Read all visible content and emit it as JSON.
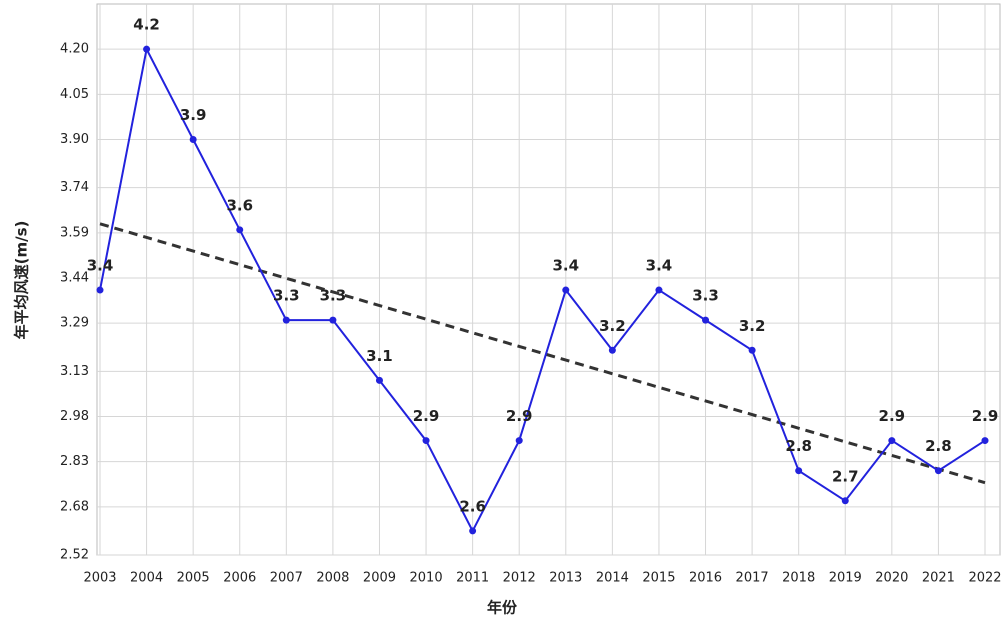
{
  "chart_data": {
    "type": "line",
    "x_label": "年份",
    "y_label": "年平均风速(m/s)",
    "categories": [
      "2003",
      "2004",
      "2005",
      "2006",
      "2007",
      "2008",
      "2009",
      "2010",
      "2011",
      "2012",
      "2013",
      "2014",
      "2015",
      "2016",
      "2017",
      "2018",
      "2019",
      "2020",
      "2021",
      "2022"
    ],
    "series": [
      {
        "color": "#2222dd",
        "values": [
          3.4,
          4.2,
          3.9,
          3.6,
          3.3,
          3.3,
          3.1,
          2.9,
          2.6,
          2.9,
          3.4,
          3.2,
          3.4,
          3.3,
          3.2,
          2.8,
          2.7,
          2.9,
          2.8,
          2.9
        ]
      }
    ],
    "trendline": {
      "values": [
        3.62,
        2.76
      ],
      "color": "#333333",
      "style": "dashed"
    },
    "ylim": [
      2.52,
      4.35
    ],
    "yticks": [
      2.52,
      2.68,
      2.83,
      2.98,
      3.13,
      3.29,
      3.44,
      3.59,
      3.74,
      {
        "value": 3.9,
        "label": "3.90"
      },
      4.05,
      {
        "value": 4.2,
        "label": "4.20"
      }
    ],
    "grid": true
  }
}
